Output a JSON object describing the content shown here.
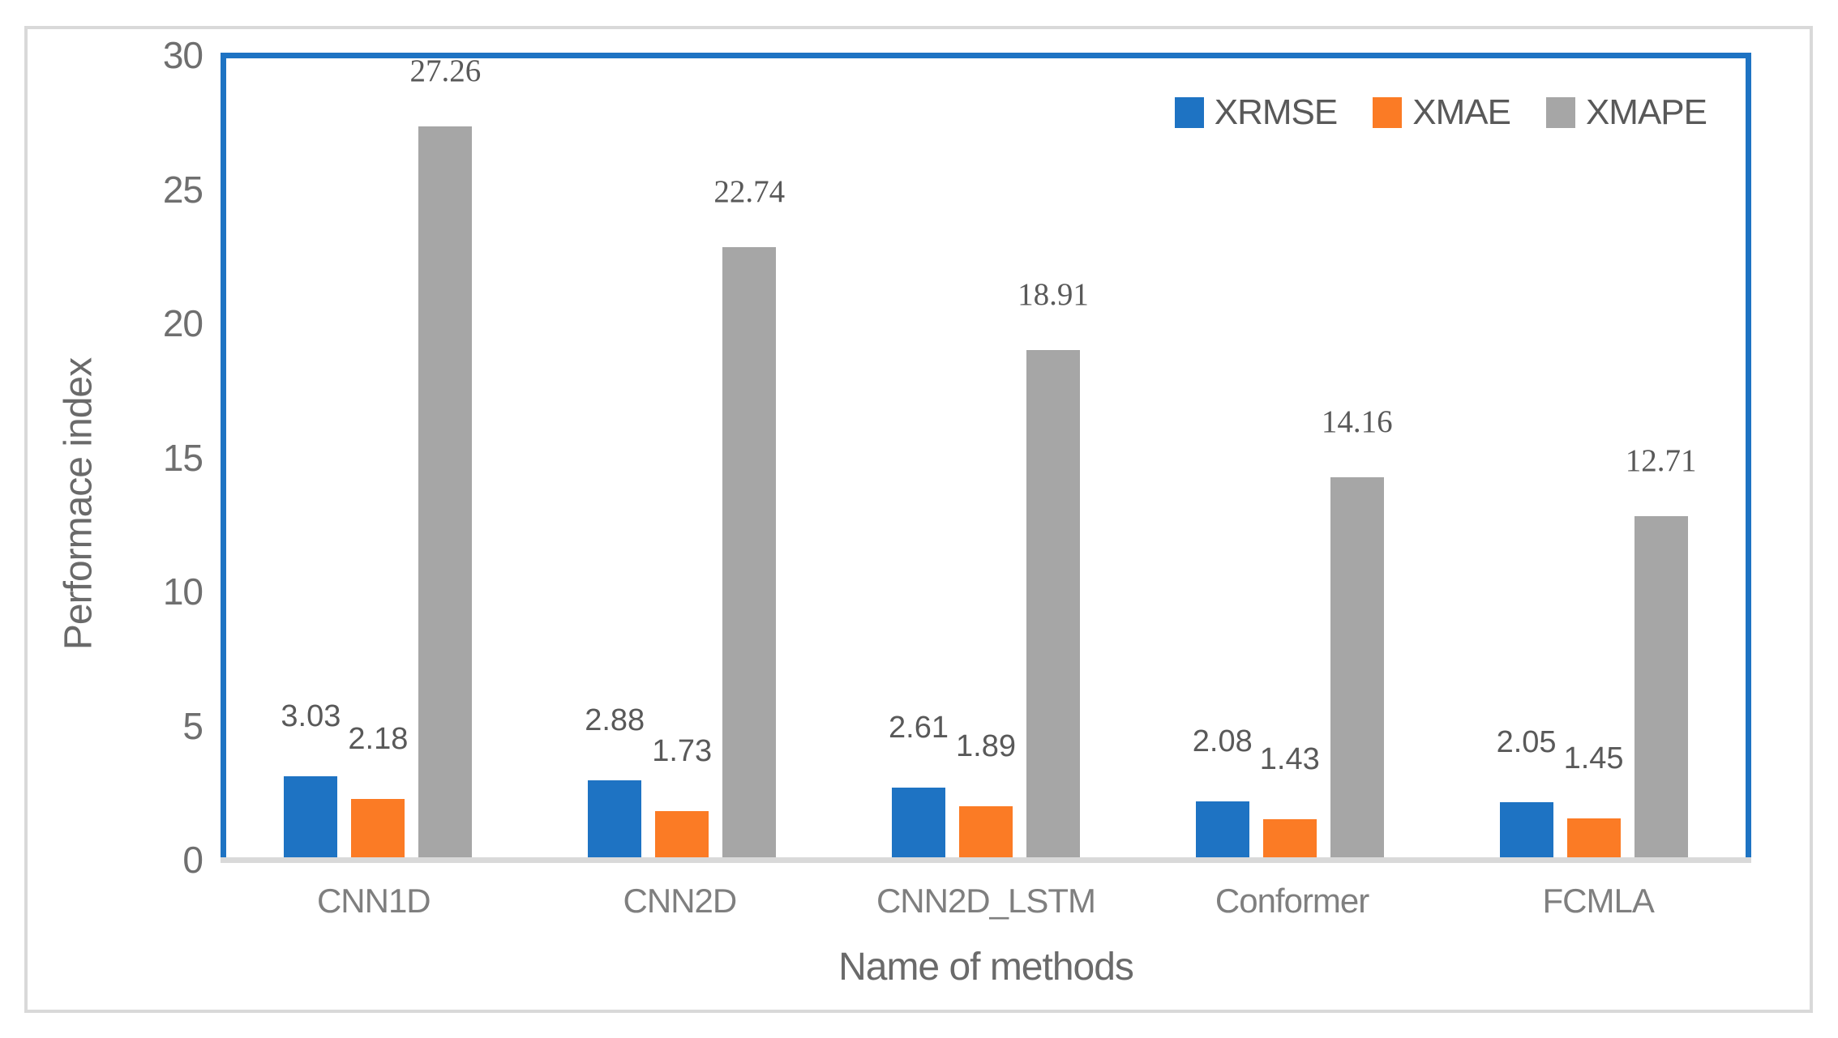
{
  "figure": {
    "background": "#ffffff",
    "frame_color": "#d9d9d9",
    "plot_border_color": "#1e73c3",
    "axis_line_color": "#d9d9d9"
  },
  "chart_data": {
    "type": "bar",
    "title": "",
    "xlabel": "Name of methods",
    "ylabel": "Performace index",
    "categories": [
      "CNN1D",
      "CNN2D",
      "CNN2D_LSTM",
      "Conformer",
      "FCMLA"
    ],
    "series": [
      {
        "name": "XRMSE",
        "color": "#1e73c3",
        "values": [
          3.03,
          2.88,
          2.61,
          2.08,
          2.05
        ],
        "labels": [
          "3.03",
          "2.88",
          "2.61",
          "2.08",
          "2.05"
        ],
        "label_style": "sans"
      },
      {
        "name": "XMAE",
        "color": "#fb7b25",
        "values": [
          2.18,
          1.73,
          1.89,
          1.43,
          1.45
        ],
        "labels": [
          "2.18",
          "1.73",
          "1.89",
          "1.43",
          "1.45"
        ],
        "label_style": "sans"
      },
      {
        "name": "XMAPE",
        "color": "#a6a6a6",
        "values": [
          27.26,
          22.74,
          18.91,
          14.16,
          12.71
        ],
        "labels": [
          "27.26",
          "22.74",
          "18.91",
          "14.16",
          "12.71"
        ],
        "label_style": "serif"
      }
    ],
    "ylim": [
      0,
      30
    ],
    "yticks": [
      0,
      5,
      10,
      15,
      20,
      25,
      30
    ],
    "grid": false,
    "legend_position": "top-right-inside"
  }
}
